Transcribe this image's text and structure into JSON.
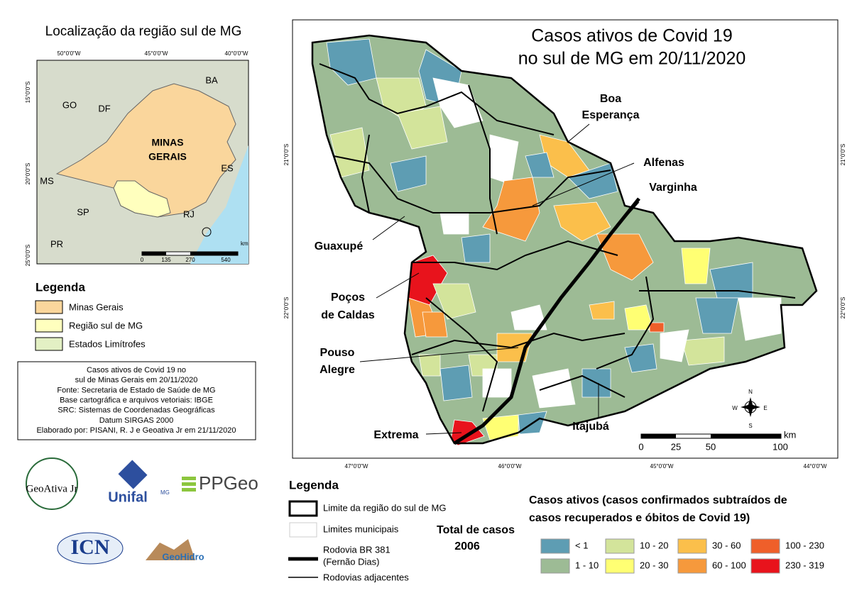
{
  "inset": {
    "title": "Localização da região sul de MG",
    "lon_labels": [
      "50°0'0\"W",
      "45°0'0\"W",
      "40°0'0\"W"
    ],
    "lat_labels": [
      "15°0'0\"S",
      "20°0'0\"S",
      "25°0'0\"S"
    ],
    "places": [
      "BA",
      "GO",
      "DF",
      "MINAS",
      "GERAIS",
      "MS",
      "ES",
      "SP",
      "RJ",
      "PR"
    ],
    "scale": [
      "0",
      "135",
      "270",
      "540",
      "km"
    ]
  },
  "inset_legend": {
    "title": "Legenda",
    "items": [
      "Minas Gerais",
      "Região sul de MG",
      "Estados Limítrofes"
    ]
  },
  "info": {
    "lines": [
      "Casos ativos de Covid 19 no",
      "sul de Minas Gerais em 20/11/2020",
      "Fonte: Secretaria de Estado de Saúde de MG",
      "Base cartográfica e arquivos vetoriais: IBGE",
      "SRC: Sistemas de Coordenadas Geográficas",
      "Datum SIRGAS 2000",
      "Elaborado por: PISANI, R. J e Geoativa Jr em 21/11/2020"
    ]
  },
  "map": {
    "title": [
      "Casos ativos de Covid 19",
      "no sul de MG em 20/11/2020"
    ],
    "cities": [
      [
        "Boa",
        "Esperança"
      ],
      [
        "Alfenas"
      ],
      [
        "Varginha"
      ],
      [
        "Guaxupé"
      ],
      [
        "Poços",
        "de Caldas"
      ],
      [
        "Pouso",
        "Alegre"
      ],
      [
        "Extrema"
      ],
      [
        "Itajubá"
      ]
    ],
    "lon_labels": [
      "47°0'0\"W",
      "46°0'0\"W",
      "45°0'0\"W",
      "44°0'0\"W"
    ],
    "lat_labels": [
      "21°0'0\"S",
      "22°0'0\"S"
    ],
    "scale": [
      "0",
      "25",
      "50",
      "100",
      "km"
    ],
    "compass": [
      "N",
      "S",
      "W",
      "E"
    ]
  },
  "legend": {
    "title": "Legenda",
    "items": [
      "Limite da região do sul de MG",
      "Limites municipais",
      "Rodovia BR 381",
      "(Fernão Dias)",
      "Rodovias adjacentes"
    ],
    "total_label": "Total de casos",
    "total": "2006"
  },
  "classes": {
    "title": [
      "Casos ativos (casos confirmados subtraídos de",
      "casos recuperados e óbitos de Covid 19)"
    ],
    "items": [
      {
        "label": "< 1",
        "color": "#5e9db3"
      },
      {
        "label": "1 - 10",
        "color": "#9dbb95"
      },
      {
        "label": "10 - 20",
        "color": "#d3e49b"
      },
      {
        "label": "20 - 30",
        "color": "#ffff73"
      },
      {
        "label": "30 - 60",
        "color": "#fbbf4b"
      },
      {
        "label": "60 - 100",
        "color": "#f6993c"
      },
      {
        "label": "100 - 230",
        "color": "#ef5f2a"
      },
      {
        "label": "230 - 319",
        "color": "#e8131c"
      }
    ]
  },
  "logos": [
    "GeoAtiva Jr",
    "Unifal",
    "MG",
    "PPGeo",
    "ICN",
    "GeoHidro"
  ]
}
